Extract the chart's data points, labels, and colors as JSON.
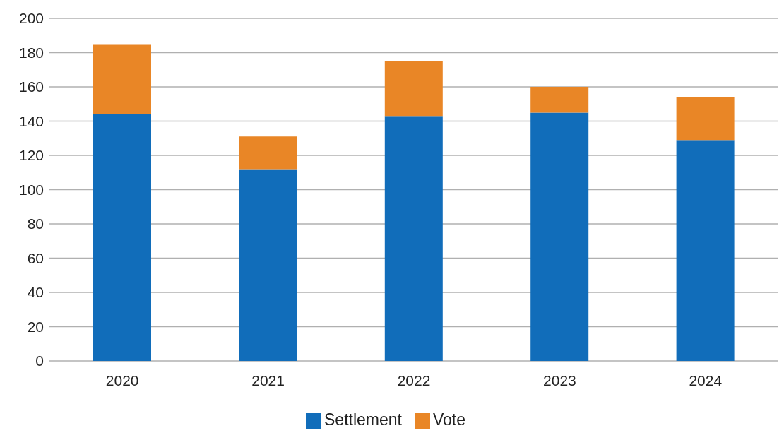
{
  "chart_data": {
    "type": "bar",
    "stacked": true,
    "categories": [
      "2020",
      "2021",
      "2022",
      "2023",
      "2024"
    ],
    "series": [
      {
        "name": "Settlement",
        "color": "#116dba",
        "values": [
          144,
          112,
          143,
          145,
          129
        ]
      },
      {
        "name": "Vote",
        "color": "#e98626",
        "values": [
          41,
          19,
          32,
          15,
          25
        ]
      }
    ],
    "ylim": [
      0,
      200
    ],
    "yticks": [
      0,
      20,
      40,
      60,
      80,
      100,
      120,
      140,
      160,
      180,
      200
    ],
    "grid": "y",
    "legend": "bottom"
  }
}
